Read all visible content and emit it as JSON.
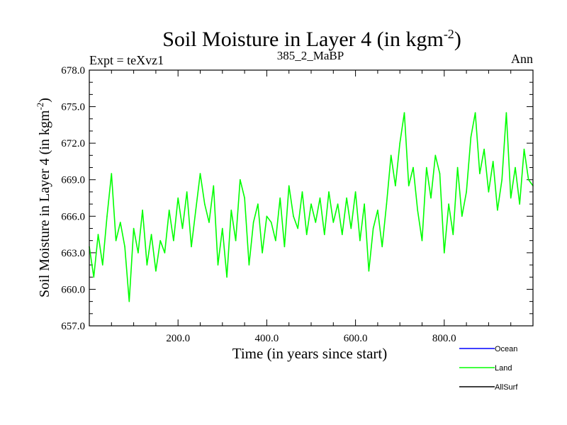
{
  "chart_data": {
    "type": "line",
    "title_main": "Soil Moisture in Layer 4 (in kgm",
    "title_sup": "-2",
    "title_close": ")",
    "left_label": "Expt = teXvz1",
    "center_label": "385_2_MaBP",
    "right_label": "Ann",
    "xlabel": "Time (in years since start)",
    "ylabel_main": "Soil Moisture in Layer 4 (in kgm",
    "ylabel_sup": "-2",
    "ylabel_close": ")",
    "xlim": [
      0,
      1000
    ],
    "ylim": [
      657.0,
      678.0
    ],
    "x_ticks": [
      200,
      400,
      600,
      800
    ],
    "x_tick_labels": [
      "200.0",
      "400.0",
      "600.0",
      "800.0"
    ],
    "y_ticks": [
      657,
      660,
      663,
      666,
      669,
      672,
      675,
      678
    ],
    "y_tick_labels": [
      "657.0",
      "660.0",
      "663.0",
      "666.0",
      "669.0",
      "672.0",
      "675.0",
      "678.0"
    ],
    "legend": [
      {
        "name": "Ocean",
        "color": "#0000ff"
      },
      {
        "name": "Land",
        "color": "#00ff00"
      },
      {
        "name": "AllSurf",
        "color": "#000000"
      }
    ],
    "series": [
      {
        "name": "Land",
        "color": "#00ff00",
        "x": [
          0,
          10,
          20,
          30,
          40,
          50,
          60,
          70,
          80,
          90,
          100,
          110,
          120,
          130,
          140,
          150,
          160,
          170,
          180,
          190,
          200,
          210,
          220,
          230,
          240,
          250,
          260,
          270,
          280,
          290,
          300,
          310,
          320,
          330,
          340,
          350,
          360,
          370,
          380,
          390,
          400,
          410,
          420,
          430,
          440,
          450,
          460,
          470,
          480,
          490,
          500,
          510,
          520,
          530,
          540,
          550,
          560,
          570,
          580,
          590,
          600,
          610,
          620,
          630,
          640,
          650,
          660,
          670,
          680,
          690,
          700,
          710,
          720,
          730,
          740,
          750,
          760,
          770,
          780,
          790,
          800,
          810,
          820,
          830,
          840,
          850,
          860,
          870,
          880,
          890,
          900,
          910,
          920,
          930,
          940,
          950,
          960,
          970,
          980,
          990,
          1000
        ],
        "values": [
          663.5,
          661.0,
          664.5,
          662.0,
          666.0,
          669.5,
          664.0,
          665.5,
          663.5,
          659.0,
          665.0,
          663.0,
          666.5,
          662.0,
          664.5,
          661.5,
          664.0,
          663.0,
          666.5,
          664.0,
          667.5,
          665.0,
          668.0,
          663.5,
          666.5,
          669.5,
          667.0,
          665.5,
          668.5,
          662.0,
          665.0,
          661.0,
          666.5,
          664.0,
          669.0,
          667.5,
          662.0,
          665.5,
          667.0,
          663.0,
          666.0,
          665.5,
          664.0,
          667.5,
          663.5,
          668.5,
          666.0,
          665.0,
          668.0,
          664.5,
          667.0,
          665.5,
          667.5,
          664.5,
          668.0,
          665.5,
          667.0,
          664.5,
          667.5,
          665.0,
          668.0,
          664.0,
          667.0,
          661.5,
          665.0,
          666.5,
          663.5,
          667.0,
          671.0,
          668.5,
          672.0,
          674.5,
          668.5,
          670.0,
          666.5,
          664.0,
          670.0,
          667.5,
          671.0,
          669.5,
          663.0,
          667.0,
          664.5,
          670.0,
          666.0,
          668.0,
          672.5,
          674.5,
          669.5,
          671.5,
          668.0,
          670.5,
          666.5,
          669.0,
          674.5,
          667.5,
          670.0,
          667.0,
          671.5,
          669.0,
          668.5
        ]
      }
    ]
  }
}
